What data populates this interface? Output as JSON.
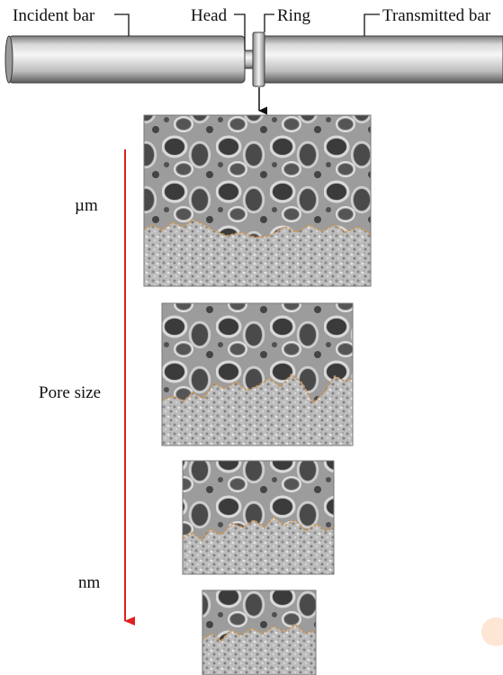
{
  "labels": {
    "incident_bar": "Incident bar",
    "head": "Head",
    "ring": "Ring",
    "transmitted_bar": "Transmitted bar",
    "top_scale": "µm",
    "middle_axis": "Pore size",
    "bottom_scale": "nm"
  },
  "colors": {
    "arrow": "#e02020",
    "interface": "#c8955a",
    "bar_light": "#f2f2f2",
    "bar_dark": "#5a5a5a"
  },
  "panels": [
    {
      "name": "sem-image-1",
      "depicts": "foam-over-dense-layer"
    },
    {
      "name": "sem-image-2",
      "depicts": "foam-over-dense-layer"
    },
    {
      "name": "sem-image-3",
      "depicts": "foam-over-dense-layer"
    },
    {
      "name": "sem-image-4",
      "depicts": "foam-over-dense-layer"
    }
  ]
}
